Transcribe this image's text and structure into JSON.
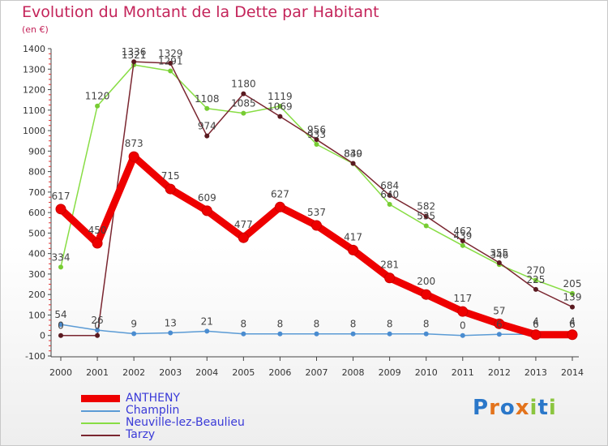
{
  "title": "Evolution du Montant de la Dette par Habitant",
  "unit_label": "(en €)",
  "logo_text": "Proxiti",
  "chart_data": {
    "type": "line",
    "title": "Evolution du Montant de la Dette par Habitant",
    "subtitle": "(en €)",
    "categories": [
      "2000",
      "2001",
      "2002",
      "2003",
      "2004",
      "2005",
      "2006",
      "2007",
      "2008",
      "2009",
      "2010",
      "2011",
      "2012",
      "2013",
      "2014"
    ],
    "ylim": [
      -100,
      1400
    ],
    "yticks": [
      -100,
      0,
      100,
      200,
      300,
      400,
      500,
      600,
      700,
      800,
      900,
      1000,
      1100,
      1200,
      1300,
      1400
    ],
    "grid": false,
    "legend_position": "bottom-left",
    "series": [
      {
        "name": "ANTHENY",
        "color": "#ee0000",
        "values": [
          617,
          450,
          873,
          715,
          609,
          477,
          627,
          537,
          417,
          281,
          200,
          117,
          57,
          4,
          4
        ]
      },
      {
        "name": "Champlin",
        "color": "#5b9bd5",
        "values": [
          54,
          26,
          9,
          13,
          21,
          8,
          8,
          8,
          8,
          8,
          8,
          0,
          6,
          6,
          6
        ]
      },
      {
        "name": "Neuville-lez-Beaulieu",
        "color": "#88dd44",
        "values": [
          334,
          1120,
          1321,
          1291,
          1108,
          1085,
          1119,
          933,
          839,
          640,
          535,
          439,
          346,
          270,
          205
        ]
      },
      {
        "name": "Tarzy",
        "color": "#7a2630",
        "values": [
          0,
          0,
          1336,
          1329,
          974,
          1180,
          1069,
          956,
          840,
          684,
          582,
          462,
          355,
          225,
          139
        ]
      }
    ]
  }
}
